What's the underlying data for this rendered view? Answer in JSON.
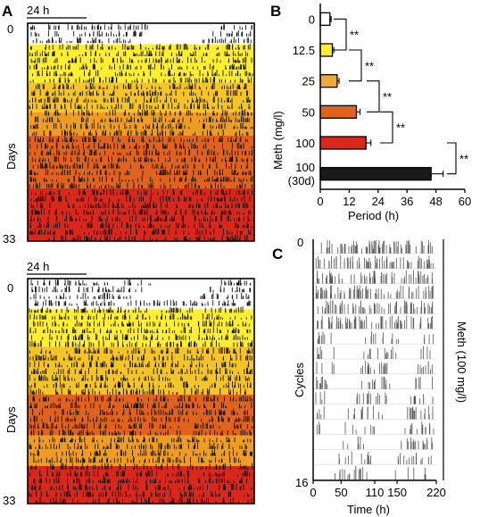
{
  "panels": {
    "a": {
      "letter": "A",
      "days_label": "Days",
      "day_start": "0",
      "day_end": "33",
      "scale_label": "24 h"
    },
    "b": {
      "letter": "B"
    },
    "c": {
      "letter": "C"
    }
  },
  "actogram_colors": [
    "#ffffff",
    "#ffef30",
    "#f5c527",
    "#ee9d22",
    "#e0621c",
    "#d9271c"
  ],
  "bar_colors": [
    "#ffffff",
    "#ffef30",
    "#ecaa3c",
    "#e0621c",
    "#d9271c",
    "#1a1a1a"
  ],
  "chart_data": [
    {
      "type": "bar",
      "orientation": "horizontal",
      "categories": [
        "0",
        "12.5",
        "25",
        "50",
        "100",
        "100\n(30d)"
      ],
      "values": [
        4,
        5,
        7,
        15,
        19,
        46
      ],
      "errors": [
        0.5,
        0.6,
        0.8,
        1.5,
        2,
        5
      ],
      "xlabel": "Period (h)",
      "ylabel": "Meth (mg/l)",
      "xlim": [
        0,
        60
      ],
      "xticks": [
        "0",
        "12",
        "24",
        "36",
        "48",
        "60"
      ],
      "significance": [
        {
          "between": [
            0,
            1
          ],
          "label": "**"
        },
        {
          "between": [
            1,
            2
          ],
          "label": "**"
        },
        {
          "between": [
            2,
            3
          ],
          "label": "**"
        },
        {
          "between": [
            3,
            4
          ],
          "label": "**"
        },
        {
          "between": [
            4,
            5
          ],
          "label": "**"
        }
      ]
    },
    {
      "type": "heatmap",
      "ylabel": "Cycles",
      "xlabel": "Time (h)",
      "y_start": "0",
      "y_end": "16",
      "xticks": [
        "0",
        "50",
        "110",
        "150",
        "220"
      ],
      "side_label": "Meth (100 mg/l)"
    }
  ]
}
